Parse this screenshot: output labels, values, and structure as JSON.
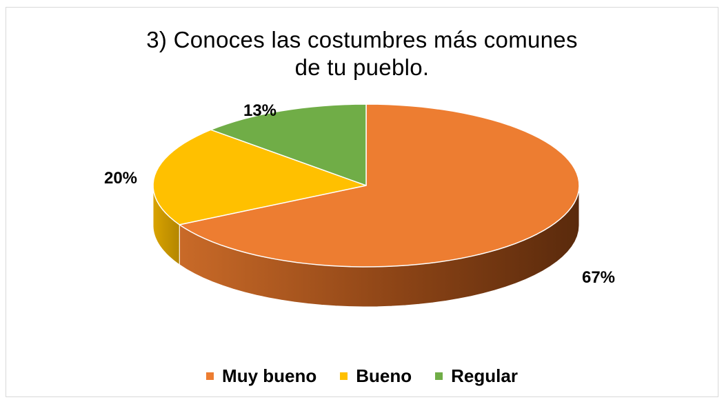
{
  "chart_data": {
    "type": "pie",
    "title_lines": [
      "3) Conoces las costumbres más comunes",
      "de tu pueblo."
    ],
    "slices": [
      {
        "label": "Muy bueno",
        "value": 67,
        "display": "67%",
        "color": "#ED7D31",
        "dark": "#5A2A0C"
      },
      {
        "label": "Bueno",
        "value": 20,
        "display": "20%",
        "color": "#FFC000",
        "dark": "#B38600"
      },
      {
        "label": "Regular",
        "value": 13,
        "display": "13%",
        "color": "#70AD47",
        "dark": "#3E6B22"
      }
    ],
    "legend_position": "bottom",
    "three_d": true
  }
}
